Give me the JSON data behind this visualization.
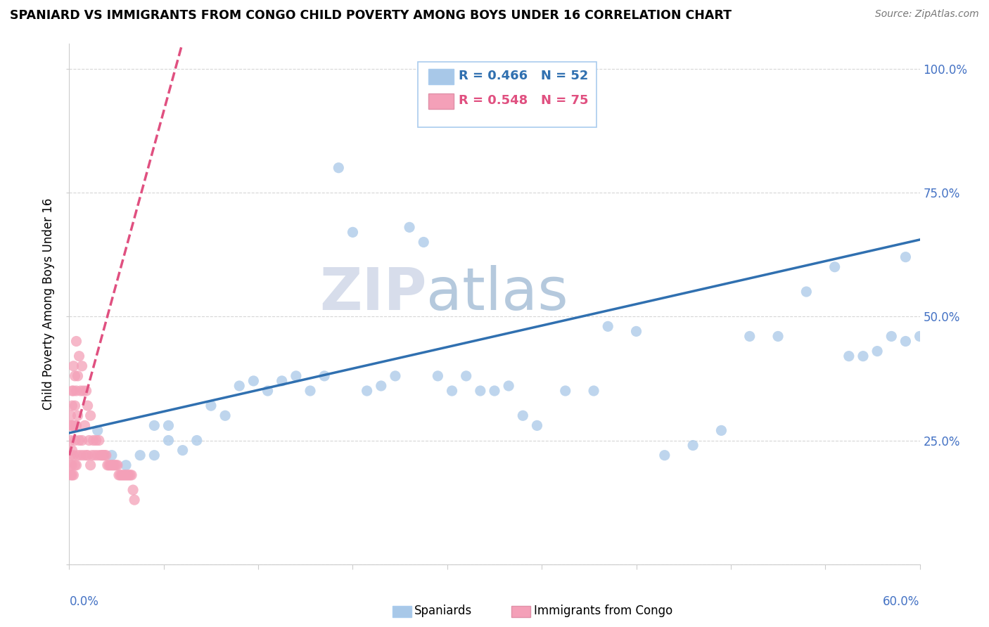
{
  "title": "SPANIARD VS IMMIGRANTS FROM CONGO CHILD POVERTY AMONG BOYS UNDER 16 CORRELATION CHART",
  "source": "Source: ZipAtlas.com",
  "ylabel": "Child Poverty Among Boys Under 16",
  "yticks": [
    0.0,
    0.25,
    0.5,
    0.75,
    1.0
  ],
  "ytick_labels": [
    "",
    "25.0%",
    "50.0%",
    "75.0%",
    "100.0%"
  ],
  "xlim": [
    0.0,
    0.6
  ],
  "ylim": [
    0.0,
    1.05
  ],
  "watermark_top": "ZIP",
  "watermark_bot": "atlas",
  "blue_color": "#a8c8e8",
  "pink_color": "#f4a0b8",
  "blue_line_color": "#3070b0",
  "pink_line_color": "#e05080",
  "blue_scatter_x": [
    0.02,
    0.03,
    0.04,
    0.05,
    0.06,
    0.06,
    0.07,
    0.07,
    0.08,
    0.09,
    0.1,
    0.11,
    0.12,
    0.13,
    0.14,
    0.15,
    0.16,
    0.17,
    0.18,
    0.19,
    0.2,
    0.21,
    0.22,
    0.23,
    0.24,
    0.25,
    0.26,
    0.27,
    0.28,
    0.29,
    0.3,
    0.31,
    0.32,
    0.33,
    0.35,
    0.37,
    0.38,
    0.4,
    0.42,
    0.44,
    0.46,
    0.48,
    0.5,
    0.52,
    0.54,
    0.55,
    0.56,
    0.57,
    0.58,
    0.59,
    0.59,
    0.6
  ],
  "blue_scatter_y": [
    0.27,
    0.22,
    0.2,
    0.22,
    0.28,
    0.22,
    0.25,
    0.28,
    0.23,
    0.25,
    0.32,
    0.3,
    0.36,
    0.37,
    0.35,
    0.37,
    0.38,
    0.35,
    0.38,
    0.8,
    0.67,
    0.35,
    0.36,
    0.38,
    0.68,
    0.65,
    0.38,
    0.35,
    0.38,
    0.35,
    0.35,
    0.36,
    0.3,
    0.28,
    0.35,
    0.35,
    0.48,
    0.47,
    0.22,
    0.24,
    0.27,
    0.46,
    0.46,
    0.55,
    0.6,
    0.42,
    0.42,
    0.43,
    0.46,
    0.62,
    0.45,
    0.46
  ],
  "pink_scatter_x": [
    0.001,
    0.001,
    0.001,
    0.001,
    0.001,
    0.001,
    0.002,
    0.002,
    0.002,
    0.002,
    0.002,
    0.002,
    0.003,
    0.003,
    0.003,
    0.003,
    0.003,
    0.004,
    0.004,
    0.004,
    0.004,
    0.005,
    0.005,
    0.005,
    0.005,
    0.006,
    0.006,
    0.006,
    0.007,
    0.007,
    0.008,
    0.008,
    0.009,
    0.009,
    0.01,
    0.01,
    0.011,
    0.012,
    0.012,
    0.013,
    0.013,
    0.014,
    0.015,
    0.015,
    0.016,
    0.017,
    0.018,
    0.019,
    0.02,
    0.021,
    0.022,
    0.023,
    0.024,
    0.025,
    0.026,
    0.027,
    0.028,
    0.029,
    0.03,
    0.031,
    0.032,
    0.033,
    0.034,
    0.035,
    0.036,
    0.037,
    0.038,
    0.039,
    0.04,
    0.041,
    0.042,
    0.043,
    0.044,
    0.045,
    0.046
  ],
  "pink_scatter_y": [
    0.18,
    0.2,
    0.22,
    0.25,
    0.28,
    0.3,
    0.18,
    0.2,
    0.23,
    0.28,
    0.32,
    0.35,
    0.18,
    0.22,
    0.28,
    0.35,
    0.4,
    0.2,
    0.25,
    0.32,
    0.38,
    0.2,
    0.28,
    0.35,
    0.45,
    0.22,
    0.3,
    0.38,
    0.25,
    0.42,
    0.22,
    0.35,
    0.25,
    0.4,
    0.22,
    0.35,
    0.28,
    0.22,
    0.35,
    0.22,
    0.32,
    0.25,
    0.2,
    0.3,
    0.22,
    0.25,
    0.22,
    0.25,
    0.22,
    0.25,
    0.22,
    0.22,
    0.22,
    0.22,
    0.22,
    0.2,
    0.2,
    0.2,
    0.2,
    0.2,
    0.2,
    0.2,
    0.2,
    0.18,
    0.18,
    0.18,
    0.18,
    0.18,
    0.18,
    0.18,
    0.18,
    0.18,
    0.18,
    0.15,
    0.13
  ],
  "blue_line_x0": 0.0,
  "blue_line_y0": 0.265,
  "blue_line_x1": 0.6,
  "blue_line_y1": 0.655,
  "pink_line_x0": 0.0,
  "pink_line_y0": 0.22,
  "pink_line_x1": 0.048,
  "pink_line_y1": 0.72,
  "legend_blue_r": "R = 0.466",
  "legend_blue_n": "N = 52",
  "legend_pink_r": "R = 0.548",
  "legend_pink_n": "N = 75"
}
